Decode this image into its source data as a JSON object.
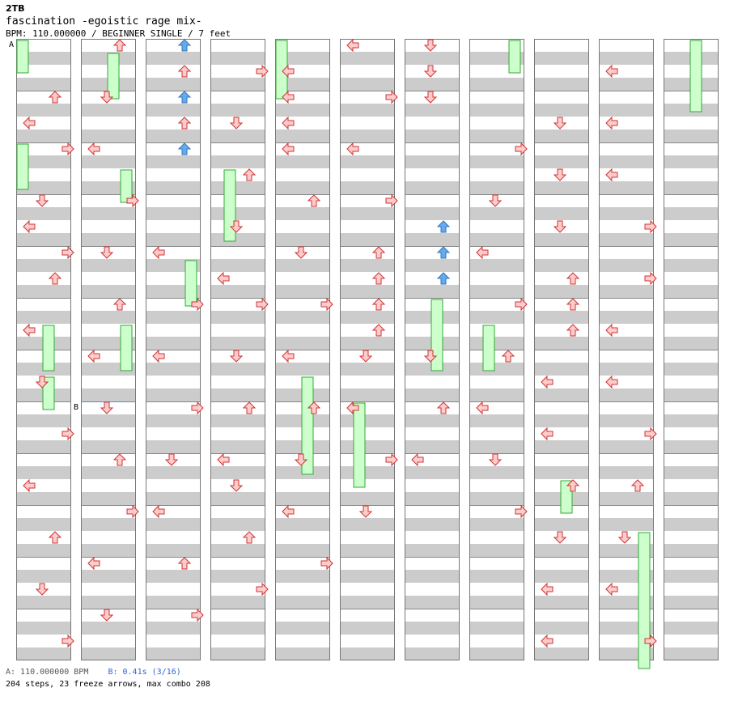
{
  "header": {
    "logo": "2TB",
    "title": "fascination -egoistic rage mix-",
    "info": "BPM: 110.000000 / BEGINNER SINGLE / 7 feet"
  },
  "sections": [
    {
      "label": "A",
      "measure": 0
    },
    {
      "label": "B",
      "measure": 19
    }
  ],
  "footer": {
    "bpm_text": "A: 110.000000 BPM",
    "speed_text": "B: 0.41s (3/16)",
    "stats": "204 steps, 23 freeze arrows, max combo 208"
  },
  "colors": {
    "stripe": "#cccccc",
    "column_border": "#777777",
    "section_line": "#6688bb",
    "arrow_red_fill": "#ffcccc",
    "arrow_red_stroke": "#cc3333",
    "arrow_blue_fill": "#66aaee",
    "arrow_blue_stroke": "#3377bb",
    "freeze_fill": "#ccffcc",
    "freeze_stroke": "#33aa33"
  },
  "notes": [
    [
      0,
      4,
      "U",
      "r"
    ],
    [
      0,
      6,
      "L",
      "r"
    ],
    [
      0,
      8,
      "R",
      "r"
    ],
    [
      0,
      12,
      "D",
      "r"
    ],
    [
      0,
      14,
      "L",
      "r"
    ],
    [
      0,
      16,
      "R",
      "r"
    ],
    [
      0,
      18,
      "U",
      "r"
    ],
    [
      0,
      22,
      "L",
      "r"
    ],
    [
      0,
      26,
      "D",
      "r"
    ],
    [
      0,
      30,
      "R",
      "r"
    ],
    [
      0,
      34,
      "L",
      "r"
    ],
    [
      0,
      38,
      "U",
      "r"
    ],
    [
      0,
      42,
      "D",
      "r"
    ],
    [
      0,
      46,
      "R",
      "r"
    ],
    [
      1,
      0,
      "U",
      "r"
    ],
    [
      1,
      4,
      "D",
      "r"
    ],
    [
      1,
      8,
      "L",
      "r"
    ],
    [
      1,
      12,
      "R",
      "r"
    ],
    [
      1,
      16,
      "D",
      "r"
    ],
    [
      1,
      20,
      "U",
      "r"
    ],
    [
      1,
      24,
      "L",
      "r"
    ],
    [
      1,
      28,
      "D",
      "r"
    ],
    [
      1,
      32,
      "U",
      "r"
    ],
    [
      1,
      36,
      "R",
      "r"
    ],
    [
      1,
      40,
      "L",
      "r"
    ],
    [
      1,
      44,
      "D",
      "r"
    ],
    [
      2,
      0,
      "U",
      "b"
    ],
    [
      2,
      2,
      "U",
      "r"
    ],
    [
      2,
      4,
      "U",
      "b"
    ],
    [
      2,
      6,
      "U",
      "r"
    ],
    [
      2,
      8,
      "U",
      "b"
    ],
    [
      2,
      16,
      "L",
      "r"
    ],
    [
      2,
      20,
      "R",
      "r"
    ],
    [
      2,
      24,
      "L",
      "r"
    ],
    [
      2,
      28,
      "R",
      "r"
    ],
    [
      2,
      32,
      "D",
      "r"
    ],
    [
      2,
      36,
      "L",
      "r"
    ],
    [
      2,
      40,
      "U",
      "r"
    ],
    [
      2,
      44,
      "R",
      "r"
    ],
    [
      3,
      2,
      "R",
      "r"
    ],
    [
      3,
      6,
      "D",
      "r"
    ],
    [
      3,
      10,
      "U",
      "r"
    ],
    [
      3,
      14,
      "D",
      "r"
    ],
    [
      3,
      18,
      "L",
      "r"
    ],
    [
      3,
      20,
      "R",
      "r"
    ],
    [
      3,
      24,
      "D",
      "r"
    ],
    [
      3,
      28,
      "U",
      "r"
    ],
    [
      3,
      32,
      "L",
      "r"
    ],
    [
      3,
      34,
      "D",
      "r"
    ],
    [
      3,
      38,
      "U",
      "r"
    ],
    [
      3,
      42,
      "R",
      "r"
    ],
    [
      4,
      2,
      "L",
      "r"
    ],
    [
      4,
      4,
      "L",
      "r"
    ],
    [
      4,
      6,
      "L",
      "r"
    ],
    [
      4,
      8,
      "L",
      "r"
    ],
    [
      4,
      12,
      "U",
      "r"
    ],
    [
      4,
      16,
      "D",
      "r"
    ],
    [
      4,
      20,
      "R",
      "r"
    ],
    [
      4,
      24,
      "L",
      "r"
    ],
    [
      4,
      28,
      "U",
      "r"
    ],
    [
      4,
      32,
      "D",
      "r"
    ],
    [
      4,
      36,
      "L",
      "r"
    ],
    [
      4,
      40,
      "R",
      "r"
    ],
    [
      5,
      0,
      "L",
      "r"
    ],
    [
      5,
      4,
      "R",
      "r"
    ],
    [
      5,
      8,
      "L",
      "r"
    ],
    [
      5,
      12,
      "R",
      "r"
    ],
    [
      5,
      16,
      "U",
      "r"
    ],
    [
      5,
      18,
      "U",
      "r"
    ],
    [
      5,
      20,
      "U",
      "r"
    ],
    [
      5,
      22,
      "U",
      "r"
    ],
    [
      5,
      24,
      "D",
      "r"
    ],
    [
      5,
      28,
      "L",
      "r"
    ],
    [
      5,
      32,
      "R",
      "r"
    ],
    [
      5,
      36,
      "D",
      "r"
    ],
    [
      6,
      0,
      "D",
      "r"
    ],
    [
      6,
      2,
      "D",
      "r"
    ],
    [
      6,
      4,
      "D",
      "r"
    ],
    [
      6,
      14,
      "U",
      "b"
    ],
    [
      6,
      16,
      "U",
      "b"
    ],
    [
      6,
      18,
      "U",
      "b"
    ],
    [
      6,
      24,
      "D",
      "r"
    ],
    [
      6,
      28,
      "U",
      "r"
    ],
    [
      6,
      32,
      "L",
      "r"
    ],
    [
      7,
      8,
      "R",
      "r"
    ],
    [
      7,
      12,
      "D",
      "r"
    ],
    [
      7,
      16,
      "L",
      "r"
    ],
    [
      7,
      20,
      "R",
      "r"
    ],
    [
      7,
      24,
      "U",
      "r"
    ],
    [
      7,
      28,
      "L",
      "r"
    ],
    [
      7,
      32,
      "D",
      "r"
    ],
    [
      7,
      36,
      "R",
      "r"
    ],
    [
      8,
      6,
      "D",
      "r"
    ],
    [
      8,
      10,
      "D",
      "r"
    ],
    [
      8,
      14,
      "D",
      "r"
    ],
    [
      8,
      18,
      "U",
      "r"
    ],
    [
      8,
      20,
      "U",
      "r"
    ],
    [
      8,
      22,
      "U",
      "r"
    ],
    [
      8,
      26,
      "L",
      "r"
    ],
    [
      8,
      30,
      "L",
      "r"
    ],
    [
      8,
      34,
      "U",
      "r"
    ],
    [
      8,
      38,
      "D",
      "r"
    ],
    [
      8,
      42,
      "L",
      "r"
    ],
    [
      8,
      46,
      "L",
      "r"
    ],
    [
      9,
      2,
      "L",
      "r"
    ],
    [
      9,
      6,
      "L",
      "r"
    ],
    [
      9,
      10,
      "L",
      "r"
    ],
    [
      9,
      14,
      "R",
      "r"
    ],
    [
      9,
      18,
      "R",
      "r"
    ],
    [
      9,
      22,
      "L",
      "r"
    ],
    [
      9,
      26,
      "L",
      "r"
    ],
    [
      9,
      30,
      "R",
      "r"
    ],
    [
      9,
      34,
      "U",
      "r"
    ],
    [
      9,
      38,
      "D",
      "r"
    ],
    [
      9,
      42,
      "L",
      "r"
    ],
    [
      9,
      46,
      "R",
      "r"
    ]
  ],
  "freezes": [
    [
      0,
      0,
      2
    ],
    [
      0,
      8,
      11
    ],
    [
      1,
      1,
      4
    ],
    [
      1,
      10,
      12
    ],
    [
      2,
      17,
      20
    ],
    [
      3,
      10,
      15
    ],
    [
      4,
      0,
      4
    ],
    [
      4,
      26,
      33
    ],
    [
      5,
      28,
      34
    ],
    [
      6,
      20,
      25
    ],
    [
      7,
      22,
      25
    ],
    [
      8,
      34,
      36
    ],
    [
      9,
      38,
      48
    ],
    [
      10,
      0,
      5
    ],
    [
      11,
      0,
      5
    ],
    [
      7,
      0,
      2
    ],
    [
      1,
      22,
      25
    ],
    [
      0,
      22,
      25
    ],
    [
      0,
      26,
      28
    ]
  ]
}
